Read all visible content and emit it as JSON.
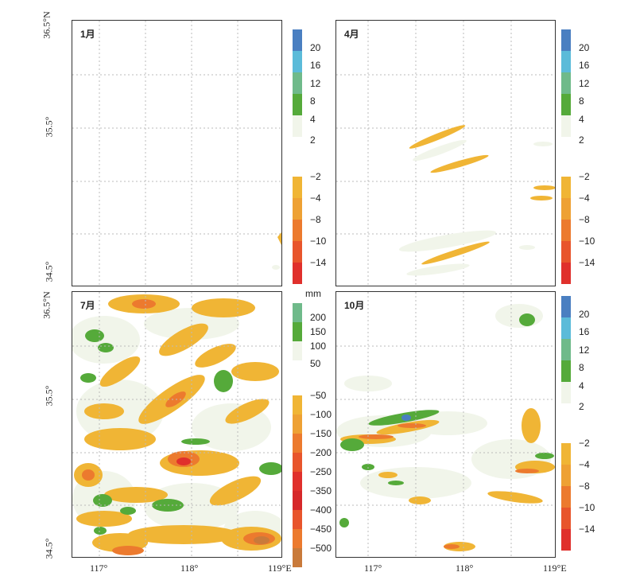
{
  "panels": [
    {
      "label": "1月"
    },
    {
      "label": "4月"
    },
    {
      "label": "7月"
    },
    {
      "label": "10月"
    }
  ],
  "axes": {
    "x_ticks": [
      "117°",
      "118°",
      "119°E"
    ],
    "y_ticks": [
      "36.5°N",
      "35.5°",
      "34.5°"
    ]
  },
  "colorbars": {
    "small": {
      "positive": [
        "20",
        "16",
        "12",
        "8",
        "4",
        "2"
      ],
      "negative": [
        "−2",
        "−4",
        "−8",
        "−10",
        "−14"
      ],
      "positive_colors": [
        "#4a7fc1",
        "#5bbbd9",
        "#6fba8a",
        "#55aa3a",
        "#f1f5ea"
      ],
      "negative_colors": [
        "#f0b535",
        "#eea134",
        "#ec7a2e",
        "#e8552c",
        "#e0302c"
      ]
    },
    "mm": {
      "unit": "mm",
      "positive": [
        "200",
        "150",
        "100",
        "50"
      ],
      "negative": [
        "−50",
        "−100",
        "−150",
        "−200",
        "−250",
        "−350",
        "−400",
        "−450",
        "−500"
      ],
      "positive_colors": [
        "#6fba8a",
        "#55aa3a",
        "#f1f5ea"
      ],
      "negative_colors": [
        "#f0b535",
        "#eea134",
        "#ec7a2e",
        "#e8552c",
        "#e0302c",
        "#d6282a",
        "#e8552c",
        "#ec7a2e",
        "#c97a3a"
      ]
    }
  }
}
